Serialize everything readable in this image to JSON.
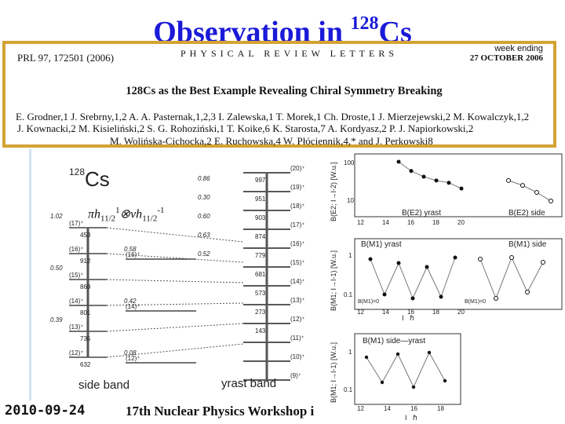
{
  "slide": {
    "title_prefix": "Observation in ",
    "title_mass": "128",
    "title_element": "Cs"
  },
  "paper": {
    "journal_ref": "PRL 97, 172501 (2006)",
    "journal_name": "PHYSICAL REVIEW LETTERS",
    "week_ending": "week ending",
    "week_date": "27 OCTOBER 2006",
    "title": "128Cs as the Best Example Revealing Chiral Symmetry Breaking",
    "authors_line1": "E. Grodner,1 J. Srebrny,1,2 A. A. Pasternak,1,2,3 I. Zalewska,1 T. Morek,1 Ch. Droste,1 J. Mierzejewski,2 M. Kowalczyk,1,2",
    "authors_line2": "J. Kownacki,2 M. Kisieliński,2 S. G. Rohoziński,1 T. Koike,6 K. Starosta,7 A. Kordyasz,2 P. J. Napiorkowski,2",
    "authors_line3": "M. Wolińska-Cichocka,2 E. Ruchowska,4 W. Płóciennik,4,* and J. Perkowski8"
  },
  "scheme": {
    "nucleus_mass": "128",
    "nucleus_element": "Cs",
    "config_a": "πh",
    "config_a_sub": "11/2",
    "config_a_sup": "1",
    "config_op": "⊗",
    "config_b": "νh",
    "config_b_sub": "11/2",
    "config_b_sup": "-1",
    "side_band_label": "side band",
    "yrast_band_label": "yrast band",
    "side_levels": [
      {
        "spin": "(17)⁺",
        "energy": "453",
        "life": "1.02"
      },
      {
        "spin": "(16)⁺",
        "energy": "912",
        "life": ""
      },
      {
        "spin": "(15)⁺",
        "energy": "869",
        "life": "0.50"
      },
      {
        "spin": "(14)⁺",
        "energy": "801",
        "life": ""
      },
      {
        "spin": "(13)⁺",
        "energy": "735",
        "life": "0.39"
      },
      {
        "spin": "(12)⁺",
        "energy": "632",
        "life": ""
      }
    ],
    "mid_levels": [
      {
        "spin": "(16)⁺",
        "life": "0.58"
      },
      {
        "spin": "(14)⁺",
        "life": "0.42"
      },
      {
        "spin": "(12)⁺",
        "life": "0.08"
      }
    ],
    "yrast_levels": [
      {
        "spin": "(20)⁺",
        "energy": "997",
        "life": "0.86"
      },
      {
        "spin": "(19)⁺",
        "energy": "951",
        "life": "0.30"
      },
      {
        "spin": "(18)⁺",
        "energy": "903",
        "life": "0.60"
      },
      {
        "spin": "(17)⁺",
        "energy": "874",
        "life": "0.63"
      },
      {
        "spin": "(16)⁺",
        "energy": "779",
        "life": "0.52"
      },
      {
        "spin": "(15)⁺",
        "energy": "681",
        "life": ""
      },
      {
        "spin": "(14)⁺",
        "energy": "573",
        "life": ""
      },
      {
        "spin": "(13)⁺",
        "energy": "273",
        "life": ""
      },
      {
        "spin": "(12)⁺",
        "energy": "143",
        "life": ""
      },
      {
        "spin": "(11)⁺",
        "energy": "",
        "life": ""
      },
      {
        "spin": "(10)⁺",
        "energy": "",
        "life": ""
      },
      {
        "spin": "(9)⁺",
        "energy": "",
        "life": ""
      }
    ]
  },
  "panels": {
    "e2": {
      "ylabel": "B(E2; I→I-2) [W.u.]",
      "legend_yrast": "B(E2) yrast",
      "legend_side": "B(E2) side",
      "ytick_100": "100",
      "ytick_10": "10",
      "xticks": [
        "12",
        "14",
        "16",
        "18",
        "20"
      ],
      "yrast_x": [
        15,
        16,
        17,
        18,
        19,
        20
      ],
      "yrast_y": [
        120,
        70,
        50,
        40,
        35,
        25
      ],
      "side_x": [
        14,
        15,
        16,
        17
      ],
      "side_y": [
        40,
        30,
        20,
        12
      ]
    },
    "m1": {
      "ylabel": "B(M1; I→I-1) [W.u.]",
      "legend_yrast": "B(M1) yrast",
      "legend_side": "B(M1) side",
      "zero_label_a": "B(M1)=0",
      "zero_label_b": "B(M1)=0",
      "ytick_1": "1",
      "ytick_01": "0.1",
      "xticks": [
        "12",
        "14",
        "16",
        "18",
        "20"
      ],
      "xlabel_unit": "ℏ",
      "xlabel": "I"
    },
    "diff": {
      "ylabel": "B(M1; I→I-1) [W.u.]",
      "legend": "B(M1) side—yrast",
      "ytick_1": "1",
      "ytick_01": "0.1",
      "xticks": [
        "12",
        "14",
        "16",
        "18"
      ],
      "xlabel": "I",
      "xlabel_unit": "ℏ"
    }
  },
  "footer": {
    "date": "2010-09-24",
    "event": "17th Nuclear Physics Workshop i"
  },
  "colors": {
    "title": "#1a1ad8",
    "box_border": "#d4a334"
  }
}
